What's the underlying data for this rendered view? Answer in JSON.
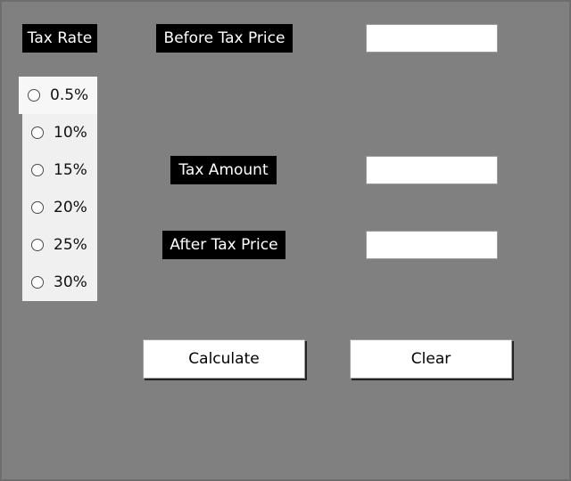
{
  "labels": {
    "tax_rate": "Tax Rate",
    "before_tax_price": "Before Tax Price",
    "tax_amount": "Tax Amount",
    "after_tax_price": "After Tax Price"
  },
  "fields": {
    "before_tax_price_value": "",
    "tax_amount_value": "",
    "after_tax_price_value": ""
  },
  "tax_rates": [
    "0.5%",
    "10%",
    "15%",
    "20%",
    "25%",
    "30%"
  ],
  "buttons": {
    "calculate": "Calculate",
    "clear": "Clear"
  },
  "colors": {
    "background": "#808080",
    "label_background": "#000000",
    "label_text": "#ffffff"
  }
}
